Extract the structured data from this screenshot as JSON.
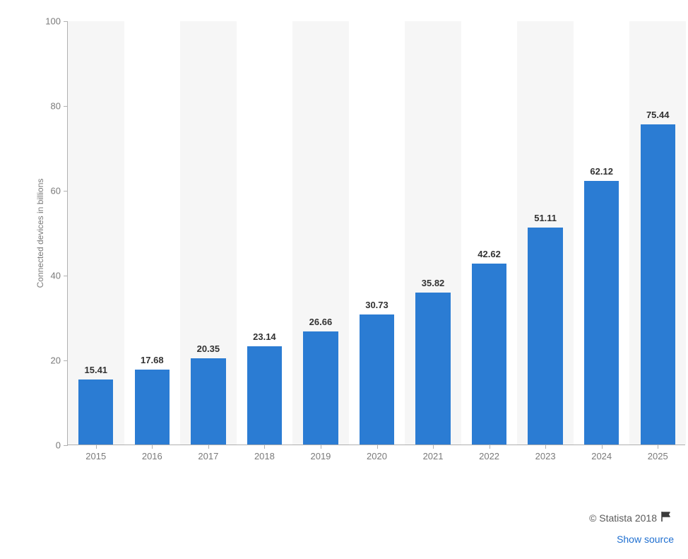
{
  "chart": {
    "type": "bar",
    "yaxis_title": "Connected devices in billions",
    "categories": [
      "2015",
      "2016",
      "2017",
      "2018",
      "2019",
      "2020",
      "2021",
      "2022",
      "2023",
      "2024",
      "2025"
    ],
    "values": [
      15.41,
      17.68,
      20.35,
      23.14,
      26.66,
      30.73,
      35.82,
      42.62,
      51.11,
      62.12,
      75.44
    ],
    "value_labels": [
      "15.41",
      "17.68",
      "20.35",
      "23.14",
      "26.66",
      "30.73",
      "35.82",
      "42.62",
      "51.11",
      "62.12",
      "75.44"
    ],
    "bar_color": "#2b7cd3",
    "ylim": [
      0,
      100
    ],
    "yticks": [
      0,
      20,
      40,
      60,
      80,
      100
    ],
    "ytick_labels": [
      "0",
      "20",
      "40",
      "60",
      "80",
      "100"
    ],
    "background_color": "#ffffff",
    "alt_column_bg": "#f6f6f6",
    "axis_color": "#b0b0b0",
    "tick_color": "#b0b0b0",
    "tick_label_color": "#7a7a7a",
    "tick_fontsize": 13,
    "yaxis_title_color": "#7a7a7a",
    "yaxis_title_fontsize": 12,
    "bar_label_color": "#323232",
    "bar_label_fontsize": 13,
    "bar_width_ratio": 0.62
  },
  "footer": {
    "copyright": "© Statista 2018",
    "copyright_color": "#5a5a5a",
    "copyright_fontsize": 14,
    "flag_icon_color": "#3a3a3a",
    "show_source_label": "Show source",
    "show_source_color": "#1f6fd0",
    "show_source_fontsize": 14
  }
}
